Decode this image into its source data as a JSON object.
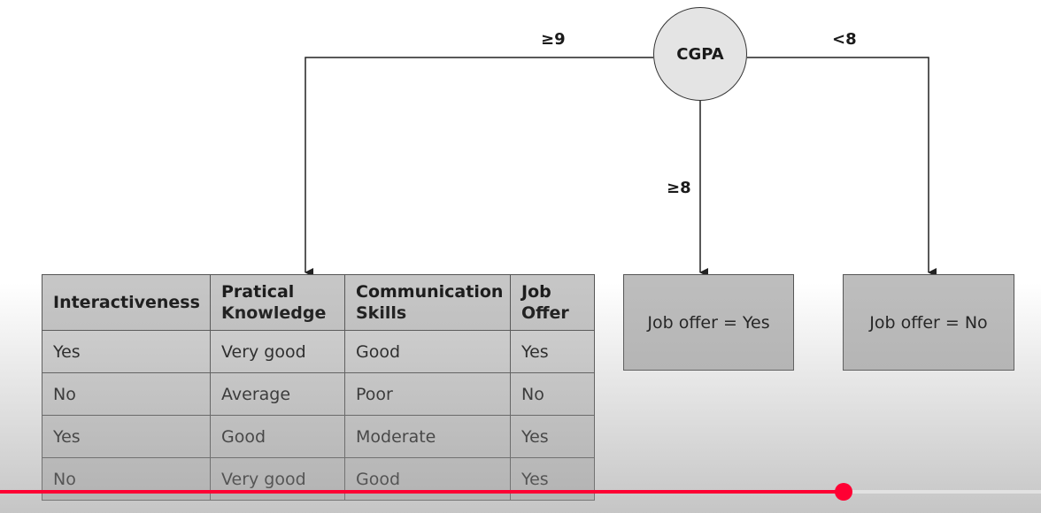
{
  "tree": {
    "root": {
      "label": "CGPA"
    },
    "edges": {
      "left": "≥9",
      "middle": "≥8",
      "right": "<8"
    },
    "leaves": {
      "yes": "Job offer = Yes",
      "no": "Job offer = No"
    }
  },
  "table": {
    "headers": [
      "Interactiveness",
      "Pratical Knowledge",
      "Communication Skills",
      "Job Offer"
    ],
    "rows": [
      [
        "Yes",
        "Very good",
        "Good",
        "Yes"
      ],
      [
        "No",
        "Average",
        "Poor",
        "No"
      ],
      [
        "Yes",
        "Good",
        "Moderate",
        "Yes"
      ],
      [
        "No",
        "Very good",
        "Good",
        "Yes"
      ]
    ]
  },
  "player": {
    "progress_fraction": 0.81,
    "accent_color": "#ff0033"
  }
}
